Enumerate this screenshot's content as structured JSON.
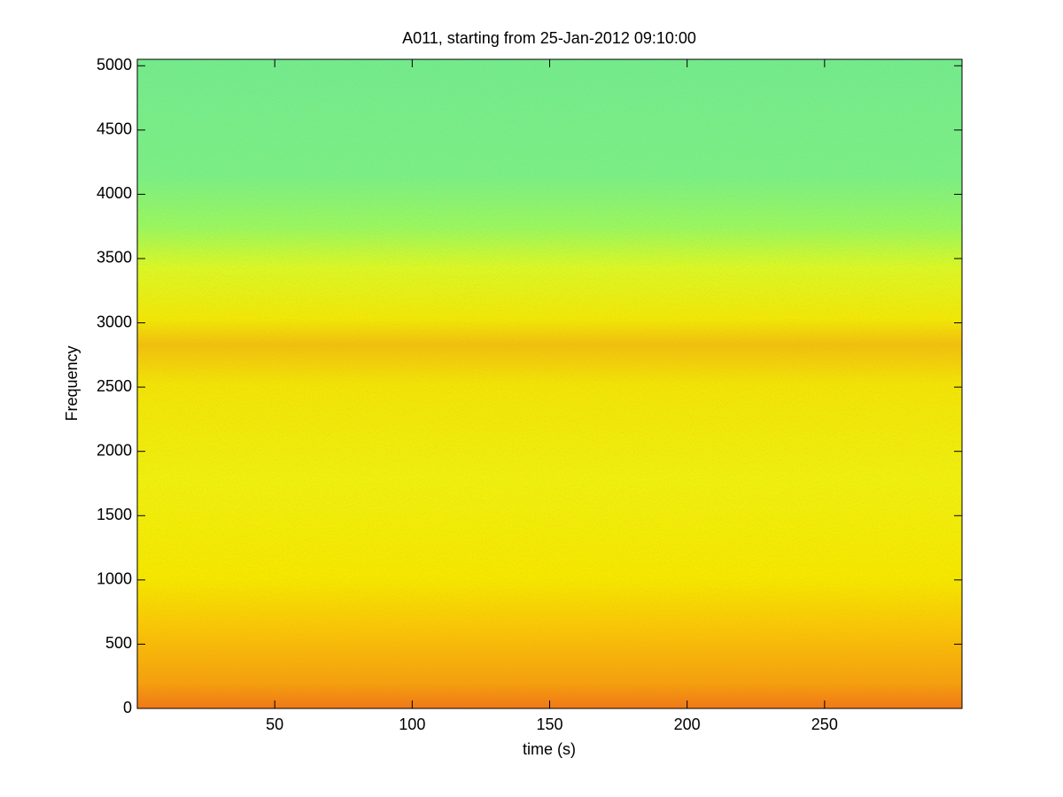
{
  "chart_data": {
    "type": "spectrogram",
    "title": "A011, starting from 25-Jan-2012 09:10:00",
    "x_label": "time (s)",
    "y_label": "Frequency",
    "xlim": [
      0,
      300
    ],
    "xticks": [
      50,
      100,
      150,
      200,
      250
    ],
    "ylim": [
      0,
      5050
    ],
    "yticks": [
      0,
      500,
      1000,
      1500,
      2000,
      2500,
      3000,
      3500,
      4000,
      4500,
      5000
    ],
    "colormap": "jet"
  }
}
